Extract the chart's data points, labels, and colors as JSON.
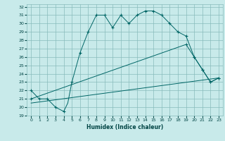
{
  "xlabel": "Humidex (Indice chaleur)",
  "bg_color": "#c8eaea",
  "grid_color": "#88bbbb",
  "line_color": "#006666",
  "text_color": "#004444",
  "xlim": [
    -0.5,
    23.5
  ],
  "ylim": [
    19,
    32.3
  ],
  "yticks": [
    19,
    20,
    21,
    22,
    23,
    24,
    25,
    26,
    27,
    28,
    29,
    30,
    31,
    32
  ],
  "xticks": [
    0,
    1,
    2,
    3,
    4,
    5,
    6,
    7,
    8,
    9,
    10,
    11,
    12,
    13,
    14,
    15,
    16,
    17,
    18,
    19,
    20,
    21,
    22,
    23
  ],
  "curve1_x": [
    0,
    1,
    2,
    3,
    4,
    4.5,
    5,
    6,
    7,
    8,
    9,
    10,
    11,
    12,
    13,
    14,
    15,
    16,
    17,
    18,
    19,
    20,
    21,
    22,
    23
  ],
  "curve1_y": [
    22,
    21,
    21,
    20,
    19.5,
    20.5,
    23,
    26.5,
    29,
    31,
    31,
    29.5,
    31,
    30,
    31,
    31.5,
    31.5,
    31,
    30,
    29,
    28.5,
    26,
    24.5,
    23,
    23.5
  ],
  "curve1_markers_x": [
    0,
    1,
    2,
    3,
    4,
    5,
    6,
    7,
    8,
    9,
    10,
    11,
    12,
    13,
    14,
    15,
    16,
    17,
    18,
    19,
    20,
    21,
    22,
    23
  ],
  "curve1_markers_y": [
    22,
    21,
    21,
    20,
    19.5,
    23,
    26.5,
    29,
    31,
    31,
    29.5,
    31,
    30,
    31,
    31.5,
    31.5,
    31,
    30,
    29,
    28.5,
    26,
    24.5,
    23,
    23.5
  ],
  "curve2_x": [
    0,
    19,
    20,
    21,
    22,
    23
  ],
  "curve2_y": [
    21,
    27.5,
    26,
    24.5,
    23,
    23.5
  ],
  "curve2_markers_x": [
    0,
    19,
    20,
    21,
    22,
    23
  ],
  "curve2_markers_y": [
    21,
    27.5,
    26,
    24.5,
    23,
    23.5
  ],
  "curve3_x": [
    0,
    23
  ],
  "curve3_y": [
    20.5,
    23.5
  ]
}
